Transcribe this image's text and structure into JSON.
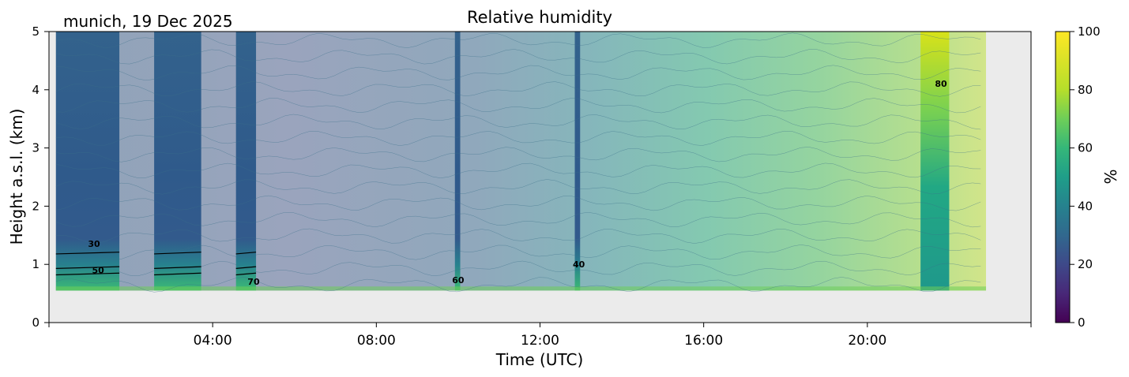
{
  "chart_data": {
    "type": "heatmap",
    "title": "Relative humidity",
    "location_label": "munich, 19 Dec 2025",
    "xlabel": "Time (UTC)",
    "ylabel": "Height a.s.l. (km)",
    "x_ticks": [
      "04:00",
      "08:00",
      "12:00",
      "16:00",
      "20:00"
    ],
    "x_tick_hours": [
      4,
      8,
      12,
      16,
      20
    ],
    "xlim_hours": [
      0,
      24
    ],
    "y_ticks": [
      "0",
      "1",
      "2",
      "3",
      "4",
      "5"
    ],
    "ylim_km": [
      0,
      5
    ],
    "data_extent": {
      "time_start_hours": 0.17,
      "time_end_hours": 22.9,
      "height_min_km": 0.55,
      "height_max_km": 5.0
    },
    "colorbar": {
      "label": "%",
      "ticks": [
        "0",
        "20",
        "40",
        "60",
        "80",
        "100"
      ],
      "range": [
        0,
        100
      ],
      "colormap": "viridis"
    },
    "contour_labels": [
      {
        "text": "30",
        "time_hours": 1.1,
        "height_km": 1.3
      },
      {
        "text": "50",
        "time_hours": 1.2,
        "height_km": 0.85
      },
      {
        "text": "70",
        "time_hours": 5.0,
        "height_km": 0.65
      },
      {
        "text": "60",
        "time_hours": 10.0,
        "height_km": 0.68
      },
      {
        "text": "40",
        "time_hours": 12.95,
        "height_km": 0.95
      },
      {
        "text": "80",
        "time_hours": 21.8,
        "height_km": 4.05
      }
    ],
    "missing_background_color": "#ebebeb"
  }
}
